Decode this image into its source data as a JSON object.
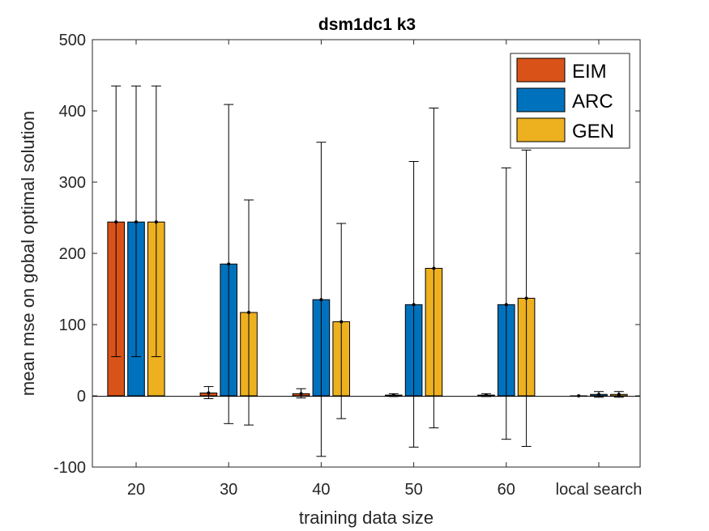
{
  "chart_data": {
    "type": "bar",
    "title": "dsm1dc1 k3",
    "xlabel": "training data size",
    "ylabel": "mean mse on gobal optimal solution",
    "categories": [
      "20",
      "30",
      "40",
      "50",
      "60",
      "local search"
    ],
    "ylim": [
      -100,
      500
    ],
    "yticks": [
      -100,
      0,
      100,
      200,
      300,
      400,
      500
    ],
    "legend_position": "top-right",
    "series": [
      {
        "name": "EIM",
        "color": "#D95319",
        "values": [
          244,
          4,
          3,
          1,
          1,
          0
        ],
        "err_low": [
          55,
          -4,
          -3,
          -1,
          -1,
          0
        ],
        "err_high": [
          435,
          13,
          10,
          3,
          3,
          0
        ]
      },
      {
        "name": "ARC",
        "color": "#0072BD",
        "values": [
          244,
          185,
          135,
          128,
          128,
          2
        ],
        "err_low": [
          55,
          -39,
          -85,
          -72,
          -61,
          -2
        ],
        "err_high": [
          435,
          409,
          356,
          329,
          320,
          6
        ]
      },
      {
        "name": "GEN",
        "color": "#EDB120",
        "values": [
          244,
          117,
          104,
          179,
          137,
          2
        ],
        "err_low": [
          55,
          -41,
          -32,
          -45,
          -71,
          -2
        ],
        "err_high": [
          435,
          275,
          242,
          404,
          345,
          6
        ]
      }
    ]
  }
}
